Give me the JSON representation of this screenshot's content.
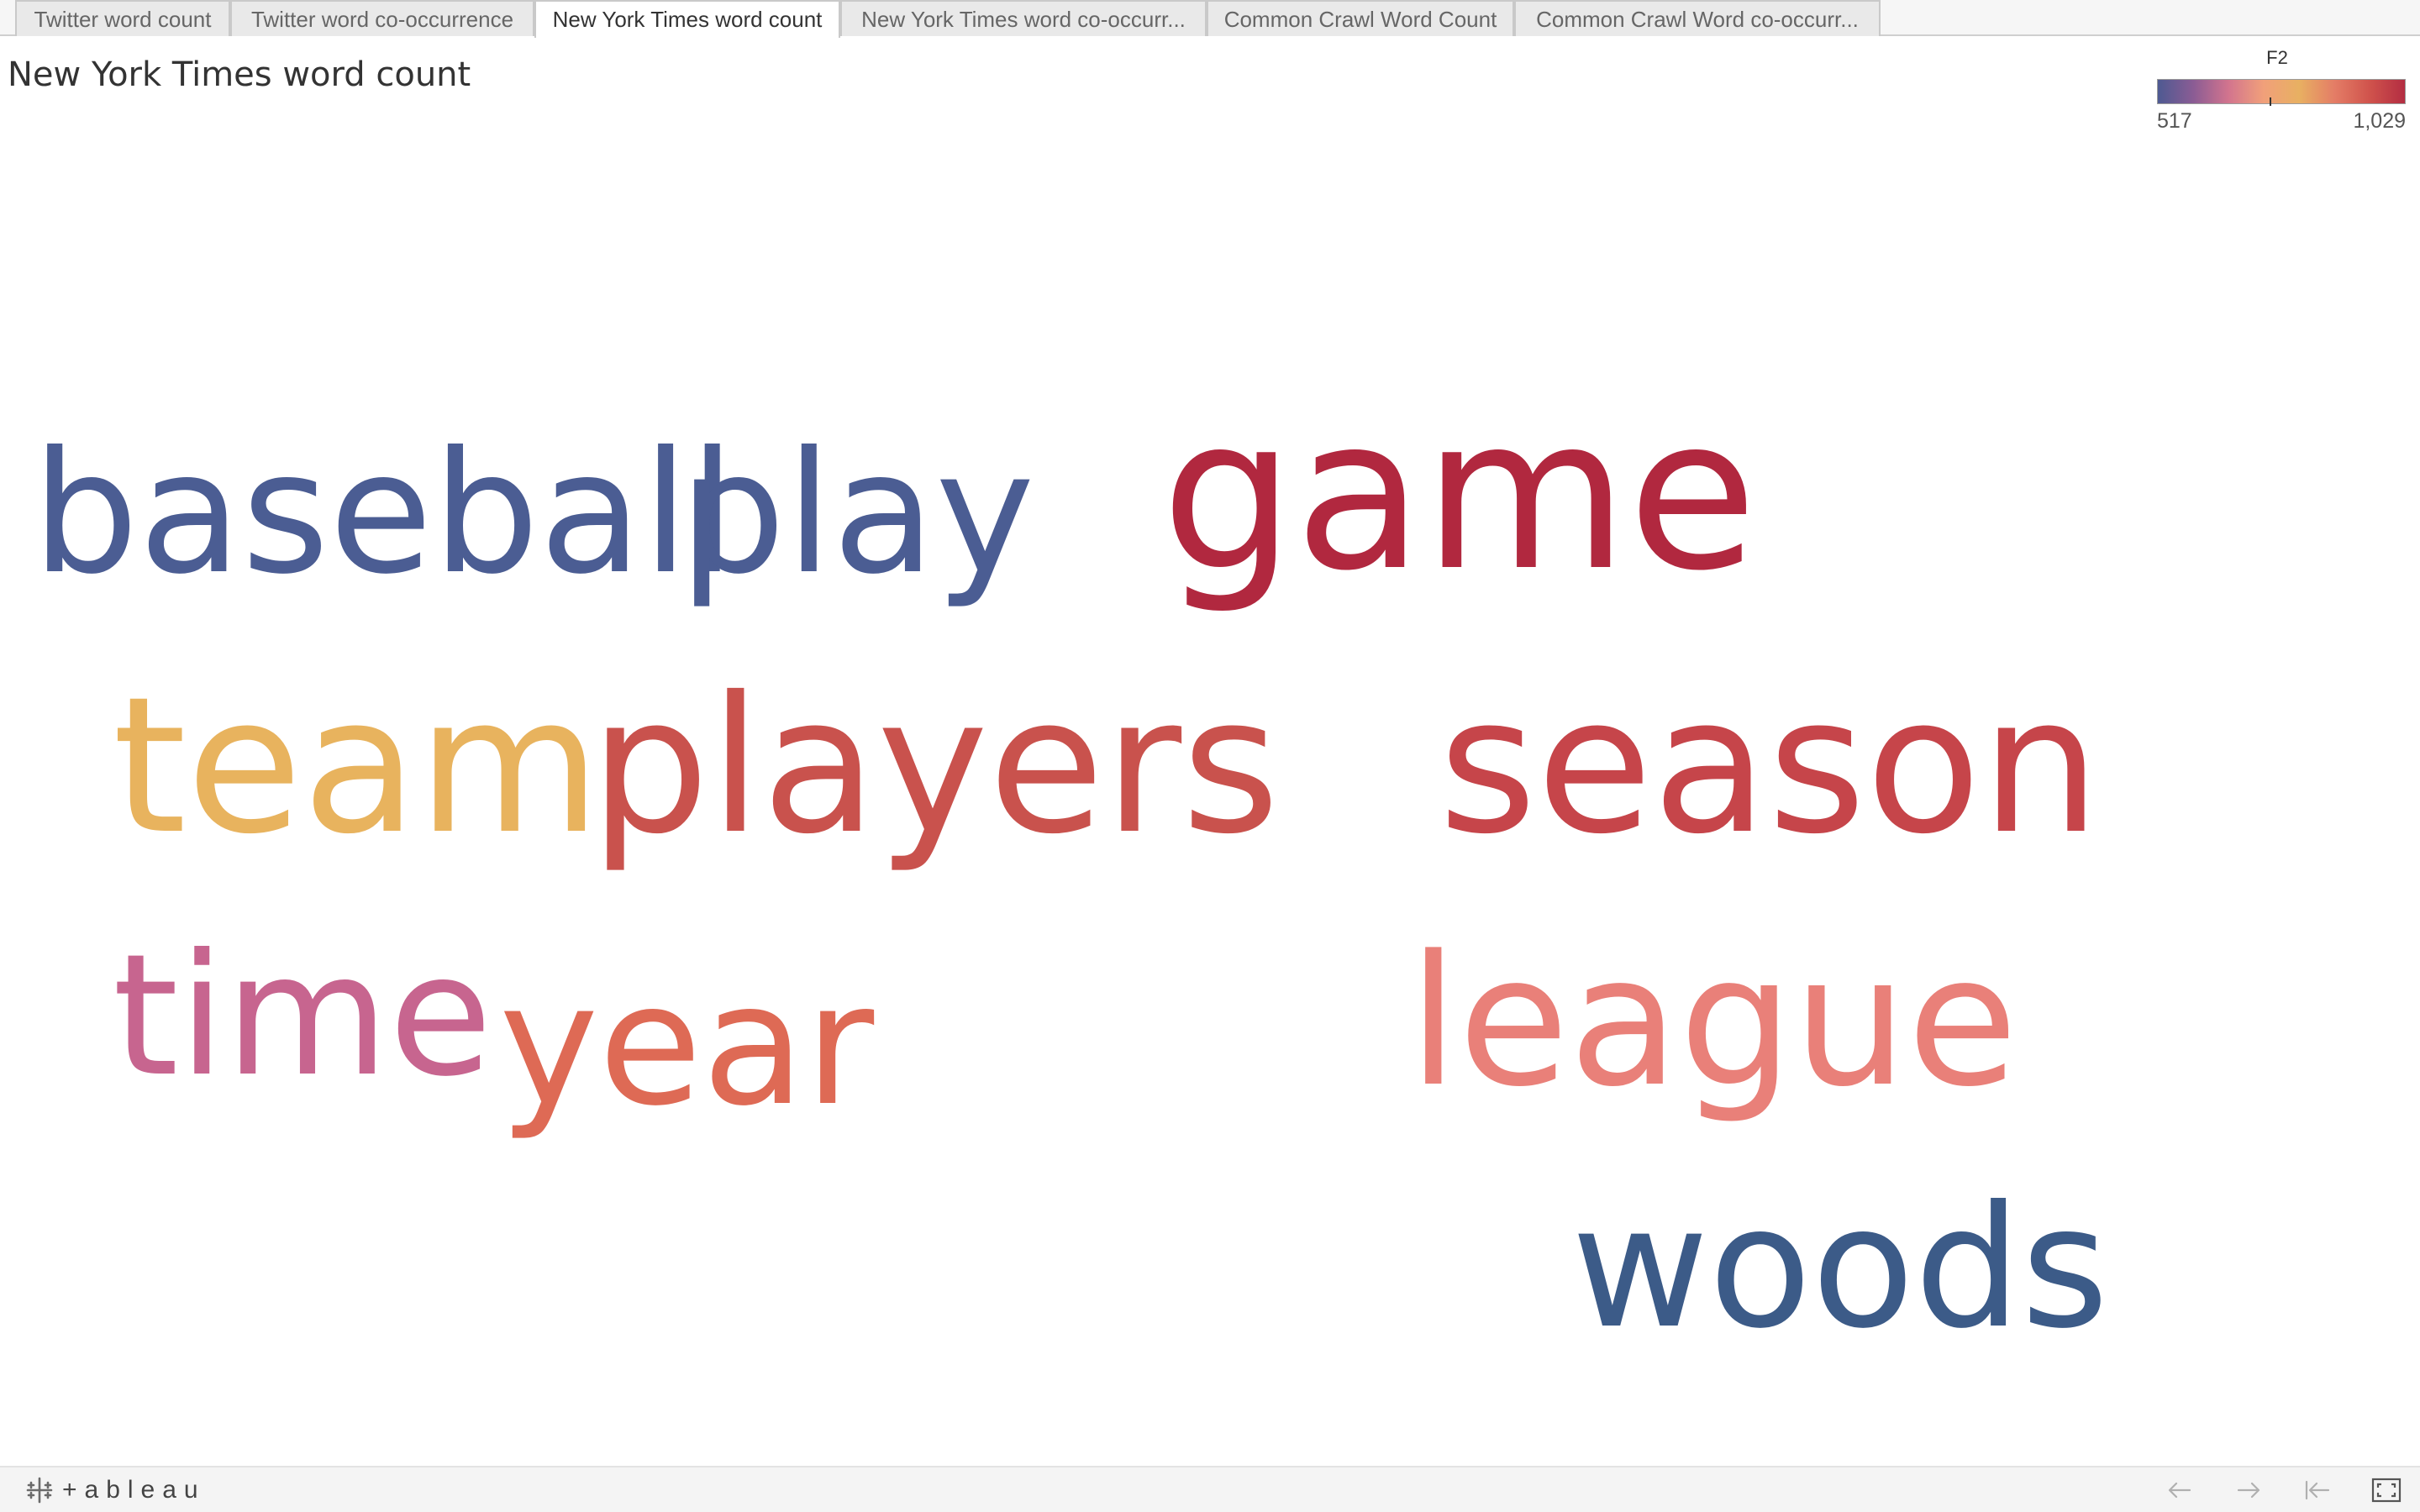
{
  "tabs": [
    {
      "label": "Twitter word count",
      "active": false
    },
    {
      "label": "Twitter word co-occurrence",
      "active": false
    },
    {
      "label": "New York Times word count",
      "active": true
    },
    {
      "label": "New York Times word co-occurr...",
      "active": false
    },
    {
      "label": "Common Crawl Word Count",
      "active": false
    },
    {
      "label": "Common Crawl Word co-occurr...",
      "active": false
    }
  ],
  "sheet": {
    "title": "New York Times word count"
  },
  "legend": {
    "field": "F2",
    "min_label": "517",
    "max_label": "1,029",
    "colors": [
      "#4e5a92",
      "#8a5c94",
      "#d2748e",
      "#f1a07a",
      "#e8b062",
      "#e47d66",
      "#d0534c",
      "#b32d42"
    ]
  },
  "word_cloud": {
    "words": [
      {
        "text": "baseball",
        "color": "#4b5d93"
      },
      {
        "text": "play",
        "color": "#4b5d93"
      },
      {
        "text": "game",
        "color": "#b1283f"
      },
      {
        "text": "team",
        "color": "#e8b35e"
      },
      {
        "text": "players",
        "color": "#c9524d"
      },
      {
        "text": "season",
        "color": "#c6454a"
      },
      {
        "text": "time",
        "color": "#c7658f"
      },
      {
        "text": "year",
        "color": "#de6a55"
      },
      {
        "text": "league",
        "color": "#e98079"
      },
      {
        "text": "woods",
        "color": "#3c5b88"
      }
    ]
  },
  "toolbar": {
    "brand": "+ableau",
    "icons": [
      "tableau-logo-icon",
      "undo-icon",
      "redo-icon",
      "revert-icon",
      "fullscreen-icon"
    ]
  }
}
